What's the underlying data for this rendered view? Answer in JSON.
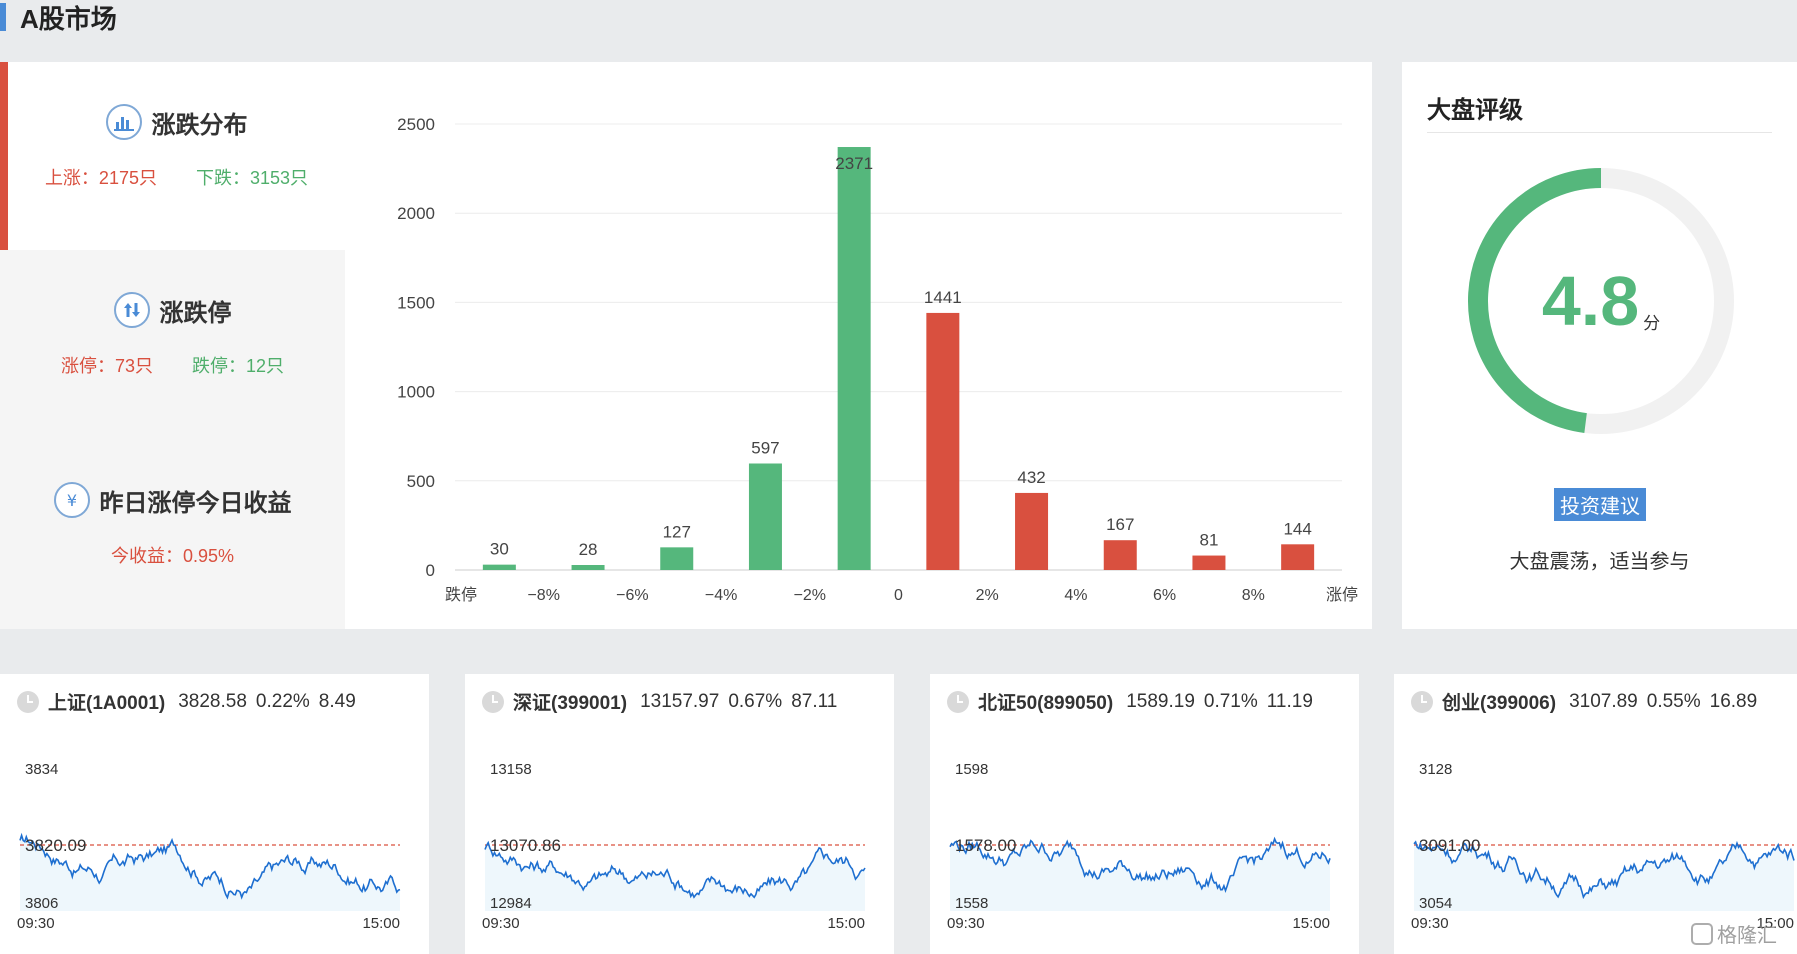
{
  "page": {
    "title": "A股市场"
  },
  "stats": {
    "distribution": {
      "label": "涨跌分布",
      "up": "上涨：2175只",
      "down": "下跌：3153只"
    },
    "limits": {
      "label": "涨跌停",
      "up": "涨停：73只",
      "down": "跌停：12只"
    },
    "yesterday": {
      "label": "昨日涨停今日收益",
      "value": "今收益：0.95%"
    },
    "icons": {
      "distribution": "bar-chart-icon",
      "limits": "up-down-arrows-icon",
      "yesterday": "yen-icon"
    }
  },
  "chart_data": {
    "type": "bar",
    "categories": [
      "跌停",
      "−8%",
      "−6%",
      "−4%",
      "−2%",
      "0",
      "2%",
      "4%",
      "6%",
      "8%",
      "涨停"
    ],
    "bar_values": [
      30,
      28,
      127,
      597,
      2371,
      1441,
      432,
      167,
      81,
      144
    ],
    "bar_colors": [
      "#55b77c",
      "#55b77c",
      "#55b77c",
      "#55b77c",
      "#55b77c",
      "#d9503f",
      "#d9503f",
      "#d9503f",
      "#d9503f",
      "#d9503f"
    ],
    "yticks": [
      0,
      500,
      1000,
      1500,
      2000,
      2500
    ],
    "ylim": [
      0,
      2500
    ],
    "grid": true
  },
  "rating": {
    "title": "大盘评级",
    "score": "4.8",
    "unit": "分",
    "score_value": 4.8,
    "score_max": 10,
    "advice_label": "投资建议",
    "advice": "大盘震荡，适当参与",
    "colors": {
      "gauge": "#55b77c",
      "track": "#f1f1f1"
    }
  },
  "indices": [
    {
      "name": "上证(1A0001)",
      "price": "3828.58",
      "pct": "0.22%",
      "chg": "8.49",
      "high": "3834",
      "prev": "3820.09",
      "low": "3806",
      "start": "09:30",
      "end": "15:00",
      "prev_frac": 0.5
    },
    {
      "name": "深证(399001)",
      "price": "13157.97",
      "pct": "0.67%",
      "chg": "87.11",
      "high": "13158",
      "prev": "13070.86",
      "low": "12984",
      "start": "09:30",
      "end": "15:00",
      "prev_frac": 0.5
    },
    {
      "name": "北证50(899050)",
      "price": "1589.19",
      "pct": "0.71%",
      "chg": "11.19",
      "high": "1598",
      "prev": "1578.00",
      "low": "1558",
      "start": "09:30",
      "end": "15:00",
      "prev_frac": 0.5
    },
    {
      "name": "创业(399006)",
      "price": "3107.89",
      "pct": "0.55%",
      "chg": "16.89",
      "high": "3128",
      "prev": "3091.00",
      "low": "3054",
      "start": "09:30",
      "end": "15:00",
      "prev_frac": 0.5
    }
  ],
  "watermark": {
    "text": "格隆汇"
  }
}
